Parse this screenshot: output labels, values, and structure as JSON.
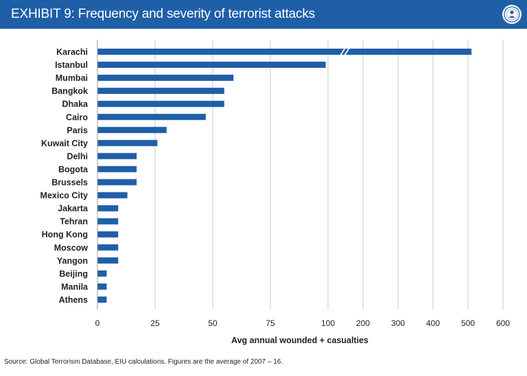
{
  "header": {
    "title": "EXHIBIT 9: Frequency and severity of terrorist attacks",
    "logo_icon": "emblem-icon"
  },
  "colors": {
    "banner": "#1f5fa8",
    "bar": "#1f5fa8",
    "grid": "#c9c9c9"
  },
  "chart_data": {
    "type": "bar",
    "orientation": "horizontal",
    "title": "Frequency and severity of terrorist attacks",
    "xlabel": "Avg annual wounded + casualties",
    "ylabel": "",
    "scale": "broken axis: linear 0–100 then compressed 100–600",
    "xticks": [
      "0",
      "25",
      "50",
      "75",
      "100",
      "200",
      "300",
      "400",
      "500",
      "600"
    ],
    "categories": [
      "Karachi",
      "Istanbul",
      "Mumbai",
      "Bangkok",
      "Dhaka",
      "Cairo",
      "Paris",
      "Kuwait City",
      "Delhi",
      "Bogota",
      "Brussels",
      "Mexico City",
      "Jakarta",
      "Tehran",
      "Hong Kong",
      "Moscow",
      "Yangon",
      "Beijing",
      "Manila",
      "Athens"
    ],
    "values": [
      510,
      99,
      59,
      55,
      55,
      47,
      30,
      26,
      17,
      17,
      17,
      13,
      9,
      9,
      9,
      9,
      9,
      4,
      4,
      4
    ],
    "axis_break": true,
    "grid": true
  },
  "footer": {
    "source": "Source: Global Terrorism Database, EIU calculations. Figures are the average of 2007 – 16."
  }
}
